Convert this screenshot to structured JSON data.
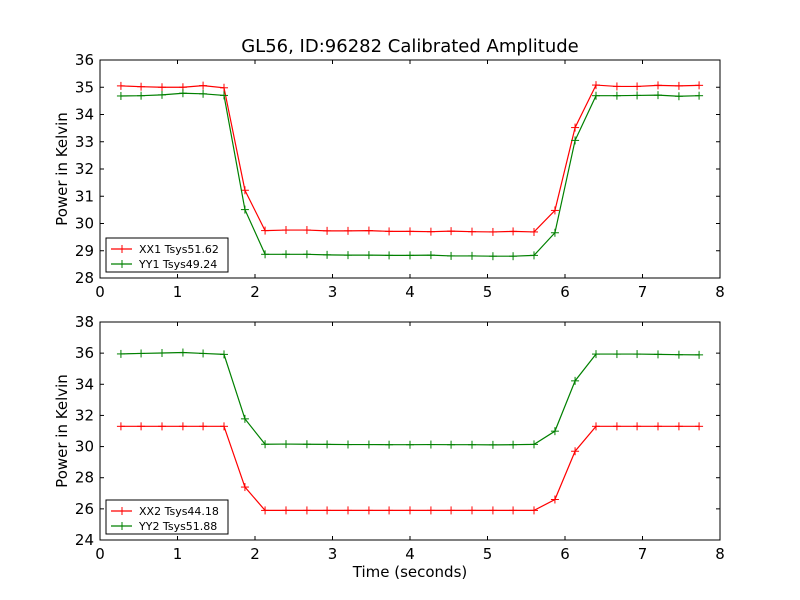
{
  "chart_data": {
    "type": "line",
    "title": "GL56, ID:96282 Calibrated Amplitude",
    "colors": {
      "red": "#ff0000",
      "green": "#008000",
      "axis": "#000000",
      "background": "#ffffff"
    },
    "x": [
      0.27,
      0.53,
      0.8,
      1.07,
      1.33,
      1.6,
      1.87,
      2.13,
      2.4,
      2.67,
      2.93,
      3.2,
      3.47,
      3.73,
      4.0,
      4.27,
      4.53,
      4.8,
      5.07,
      5.33,
      5.6,
      5.87,
      6.13,
      6.4,
      6.67,
      6.93,
      7.2,
      7.47,
      7.73
    ],
    "panels": [
      {
        "xlim": [
          0,
          8
        ],
        "ylim": [
          28,
          36
        ],
        "xticks": [
          0,
          1,
          2,
          3,
          4,
          5,
          6,
          7,
          8
        ],
        "yticks": [
          28,
          29,
          30,
          31,
          32,
          33,
          34,
          35,
          36
        ],
        "xlabel": "",
        "ylabel": "Power in Kelvin",
        "legend_position": "lower-left",
        "series": [
          {
            "name": "XX1 Tsys51.62",
            "color": "#ff0000",
            "values": [
              35.05,
              35.02,
              35.0,
              35.0,
              35.06,
              34.98,
              31.22,
              29.74,
              29.76,
              29.76,
              29.73,
              29.73,
              29.74,
              29.71,
              29.71,
              29.7,
              29.72,
              29.7,
              29.69,
              29.71,
              29.69,
              30.48,
              33.52,
              35.08,
              35.03,
              35.03,
              35.07,
              35.05,
              35.07
            ]
          },
          {
            "name": "YY1 Tsys49.24",
            "color": "#008000",
            "values": [
              34.68,
              34.69,
              34.72,
              34.78,
              34.76,
              34.7,
              30.51,
              28.87,
              28.87,
              28.87,
              28.85,
              28.84,
              28.84,
              28.83,
              28.83,
              28.84,
              28.81,
              28.81,
              28.8,
              28.8,
              28.83,
              29.66,
              33.05,
              34.69,
              34.69,
              34.7,
              34.71,
              34.67,
              34.69
            ]
          }
        ]
      },
      {
        "xlim": [
          0,
          8
        ],
        "ylim": [
          24,
          38
        ],
        "xticks": [
          0,
          1,
          2,
          3,
          4,
          5,
          6,
          7,
          8
        ],
        "yticks": [
          24,
          26,
          28,
          30,
          32,
          34,
          36,
          38
        ],
        "xlabel": "Time (seconds)",
        "ylabel": "Power in Kelvin",
        "legend_position": "lower-left",
        "series": [
          {
            "name": "XX2 Tsys44.18",
            "color": "#ff0000",
            "values": [
              31.3,
              31.3,
              31.3,
              31.3,
              31.3,
              31.3,
              27.4,
              25.9,
              25.9,
              25.9,
              25.9,
              25.9,
              25.9,
              25.9,
              25.9,
              25.9,
              25.9,
              25.9,
              25.9,
              25.9,
              25.9,
              26.6,
              29.7,
              31.3,
              31.3,
              31.3,
              31.3,
              31.3,
              31.3
            ]
          },
          {
            "name": "YY2 Tsys51.88",
            "color": "#008000",
            "values": [
              35.95,
              35.98,
              36.01,
              36.04,
              35.98,
              35.92,
              31.78,
              30.15,
              30.16,
              30.15,
              30.14,
              30.13,
              30.13,
              30.12,
              30.12,
              30.13,
              30.12,
              30.12,
              30.11,
              30.12,
              30.14,
              30.99,
              34.22,
              35.94,
              35.94,
              35.94,
              35.92,
              35.9,
              35.89
            ]
          }
        ]
      }
    ]
  }
}
